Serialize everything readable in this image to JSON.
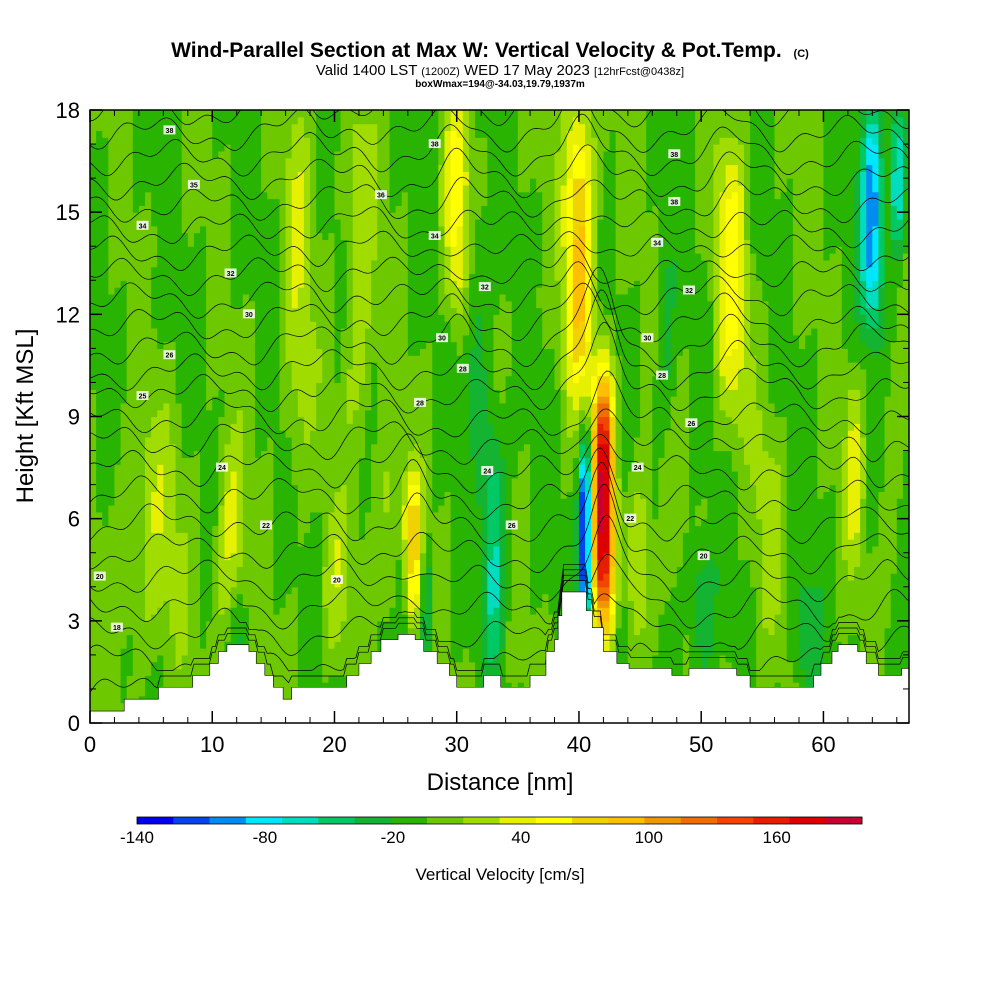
{
  "chart_data": {
    "type": "heatmap",
    "title": "Wind-Parallel Section at Max W: Vertical Velocity & Pot.Temp.",
    "title_mark": "(C)",
    "subtitle_parts": {
      "valid": "Valid 1400 LST",
      "utc": "(1200Z)",
      "date": "WED 17 May 2023",
      "fcst": "[12hrFcst@0438z]"
    },
    "note": "boxWmax=194@-34.03,19.79,1937m",
    "xlabel": "Distance [nm]",
    "ylabel": "Height [Kft MSL]",
    "xlim": [
      0,
      67
    ],
    "ylim": [
      0,
      18
    ],
    "x_ticks": [
      0,
      10,
      20,
      30,
      40,
      50,
      60
    ],
    "y_ticks": [
      0,
      3,
      6,
      9,
      12,
      15,
      18
    ],
    "colorbar": {
      "label": "Vertical Velocity [cm/s]",
      "min": -140,
      "max": 200,
      "tick_values": [
        -140,
        -80,
        -20,
        40,
        100,
        160
      ],
      "tick_labels": [
        "-140",
        "-80",
        "-20",
        "40",
        "100",
        "160"
      ],
      "colors": [
        "#0000ee",
        "#0044f0",
        "#008cf0",
        "#00e6ff",
        "#00dcbe",
        "#00c864",
        "#14b432",
        "#28b400",
        "#6ec800",
        "#a0dc00",
        "#e6f000",
        "#ffff00",
        "#f0d200",
        "#ffbe00",
        "#f09600",
        "#f06e00",
        "#f04600",
        "#e61e00",
        "#dc0000",
        "#c80032"
      ]
    },
    "background_w": -5,
    "updrafts": [
      {
        "x": 5,
        "z_low": 2,
        "z_high": 9,
        "w": 26,
        "sx": 3.0
      },
      {
        "x": 11.5,
        "z_low": 2,
        "z_high": 8,
        "w": 38,
        "sx": 1.2
      },
      {
        "x": 17,
        "z_low": 7,
        "z_high": 18,
        "w": 30,
        "sx": 1.2
      },
      {
        "x": 20,
        "z_low": 2,
        "z_high": 6,
        "w": 26,
        "sx": 1.2
      },
      {
        "x": 22,
        "z_low": 8,
        "z_high": 18,
        "w": 32,
        "sx": 1.3
      },
      {
        "x": 24.5,
        "z_low": 3,
        "z_high": 8,
        "w": 28,
        "sx": 1.2
      },
      {
        "x": 26.5,
        "z_low": 3,
        "z_high": 7,
        "w": 75,
        "sx": 0.8
      },
      {
        "x": 30,
        "z_low": 12,
        "z_high": 18,
        "w": 58,
        "sx": 1.1
      },
      {
        "x": 40,
        "z_low": 10,
        "z_high": 18,
        "w": 92,
        "sx": 1.2
      },
      {
        "x": 42,
        "z_low": 3,
        "z_high": 10,
        "w": 194,
        "sx": 0.9
      },
      {
        "x": 45,
        "z_low": 2,
        "z_high": 7,
        "w": 40,
        "sx": 1.0
      },
      {
        "x": 52.5,
        "z_low": 9,
        "z_high": 17,
        "w": 55,
        "sx": 1.3
      },
      {
        "x": 55.5,
        "z_low": 3,
        "z_high": 9,
        "w": 22,
        "sx": 1.3
      },
      {
        "x": 62.5,
        "z_low": 5,
        "z_high": 10,
        "w": 36,
        "sx": 0.8
      },
      {
        "x": 65.5,
        "z_low": 4,
        "z_high": 10,
        "w": 20,
        "sx": 0.8
      }
    ],
    "downdrafts": [
      {
        "x": 12,
        "z_low": 1,
        "z_high": 4,
        "w": -25,
        "sx": 0.8
      },
      {
        "x": 25.5,
        "z_low": 2.5,
        "z_high": 5,
        "w": -28,
        "sx": 0.6
      },
      {
        "x": 27.5,
        "z_low": 2,
        "z_high": 5,
        "w": -40,
        "sx": 0.6
      },
      {
        "x": 33,
        "z_low": 2,
        "z_high": 9,
        "w": -52,
        "sx": 1.0
      },
      {
        "x": 31.5,
        "z_low": 9,
        "z_high": 15,
        "w": -30,
        "sx": 1.0
      },
      {
        "x": 40.5,
        "z_low": 3,
        "z_high": 8,
        "w": -150,
        "sx": 0.5
      },
      {
        "x": 43.5,
        "z_low": 1.5,
        "z_high": 3.5,
        "w": -30,
        "sx": 0.6
      },
      {
        "x": 50,
        "z_low": 1.5,
        "z_high": 5,
        "w": -35,
        "sx": 1.0
      },
      {
        "x": 47,
        "z_low": 9,
        "z_high": 14,
        "w": -22,
        "sx": 0.8
      },
      {
        "x": 58.5,
        "z_low": 1,
        "z_high": 4,
        "w": -32,
        "sx": 1.0
      },
      {
        "x": 64,
        "z_low": 12,
        "z_high": 18,
        "w": -95,
        "sx": 0.9
      },
      {
        "x": 66,
        "z_low": 14,
        "z_high": 18,
        "w": -70,
        "sx": 0.6
      }
    ],
    "terrain": [
      [
        0,
        0.35
      ],
      [
        2.8,
        0.35
      ],
      [
        2.8,
        0.7
      ],
      [
        5.6,
        0.7
      ],
      [
        5.6,
        1.05
      ],
      [
        8.4,
        1.05
      ],
      [
        8.4,
        1.4
      ],
      [
        9.8,
        1.4
      ],
      [
        9.8,
        1.75
      ],
      [
        10.5,
        1.75
      ],
      [
        10.5,
        2.1
      ],
      [
        11.2,
        2.1
      ],
      [
        11.2,
        2.3
      ],
      [
        13,
        2.3
      ],
      [
        13,
        2.1
      ],
      [
        13.6,
        2.1
      ],
      [
        13.6,
        1.75
      ],
      [
        14.3,
        1.75
      ],
      [
        14.3,
        1.4
      ],
      [
        15,
        1.4
      ],
      [
        15,
        1.05
      ],
      [
        15.8,
        1.05
      ],
      [
        15.8,
        0.7
      ],
      [
        16.5,
        0.7
      ],
      [
        16.5,
        1.05
      ],
      [
        21,
        1.05
      ],
      [
        21,
        1.4
      ],
      [
        22,
        1.4
      ],
      [
        22,
        1.75
      ],
      [
        23,
        1.75
      ],
      [
        23,
        2.1
      ],
      [
        23.8,
        2.1
      ],
      [
        23.8,
        2.45
      ],
      [
        25.2,
        2.45
      ],
      [
        25.2,
        2.6
      ],
      [
        26.6,
        2.6
      ],
      [
        26.6,
        2.45
      ],
      [
        27.3,
        2.45
      ],
      [
        27.3,
        2.1
      ],
      [
        28.4,
        2.1
      ],
      [
        28.4,
        1.75
      ],
      [
        29.4,
        1.75
      ],
      [
        29.4,
        1.4
      ],
      [
        30,
        1.4
      ],
      [
        30,
        1.05
      ],
      [
        32.2,
        1.05
      ],
      [
        32.2,
        1.4
      ],
      [
        33.6,
        1.4
      ],
      [
        33.6,
        1.05
      ],
      [
        36,
        1.05
      ],
      [
        36,
        1.4
      ],
      [
        37.3,
        1.4
      ],
      [
        37.3,
        2.1
      ],
      [
        38,
        2.1
      ],
      [
        38,
        2.45
      ],
      [
        38.3,
        2.45
      ],
      [
        38.3,
        3.15
      ],
      [
        38.6,
        3.15
      ],
      [
        38.6,
        3.85
      ],
      [
        40.6,
        3.85
      ],
      [
        40.6,
        3.3
      ],
      [
        41.1,
        3.3
      ],
      [
        41.1,
        2.8
      ],
      [
        42,
        2.8
      ],
      [
        42,
        2.1
      ],
      [
        43.1,
        2.1
      ],
      [
        43.1,
        1.75
      ],
      [
        44.1,
        1.75
      ],
      [
        44.1,
        1.6
      ],
      [
        47.6,
        1.6
      ],
      [
        47.6,
        1.4
      ],
      [
        49,
        1.4
      ],
      [
        49,
        1.6
      ],
      [
        52.9,
        1.6
      ],
      [
        52.9,
        1.4
      ],
      [
        54,
        1.4
      ],
      [
        54,
        1.05
      ],
      [
        59.2,
        1.05
      ],
      [
        59.2,
        1.4
      ],
      [
        59.8,
        1.4
      ],
      [
        59.8,
        1.75
      ],
      [
        60.7,
        1.75
      ],
      [
        60.7,
        2.1
      ],
      [
        61.2,
        2.1
      ],
      [
        61.2,
        2.3
      ],
      [
        62.8,
        2.3
      ],
      [
        62.8,
        2.1
      ],
      [
        63.5,
        2.1
      ],
      [
        63.5,
        1.75
      ],
      [
        64.5,
        1.75
      ],
      [
        64.5,
        1.4
      ],
      [
        66.4,
        1.4
      ],
      [
        66.4,
        1.6
      ],
      [
        67,
        1.6
      ]
    ],
    "isentrope_base_heights": [
      0.9,
      1.7,
      2.5,
      3.3,
      4.1,
      4.9,
      5.7,
      6.5,
      7.3,
      8.1,
      8.8,
      9.6,
      10.3,
      11.0,
      11.7,
      12.4,
      13.1,
      13.8,
      14.5,
      15.2,
      15.9,
      16.6,
      17.3,
      18.0
    ],
    "theta_labels": [
      {
        "x": 2.2,
        "z": 2.8,
        "text": "18"
      },
      {
        "x": 0.8,
        "z": 4.3,
        "text": "20"
      },
      {
        "x": 20.2,
        "z": 4.2,
        "text": "20"
      },
      {
        "x": 14.4,
        "z": 5.8,
        "text": "22"
      },
      {
        "x": 10.8,
        "z": 7.5,
        "text": "24"
      },
      {
        "x": 32.5,
        "z": 7.4,
        "text": "24"
      },
      {
        "x": 34.5,
        "z": 5.8,
        "text": "26"
      },
      {
        "x": 44.2,
        "z": 6.0,
        "text": "22"
      },
      {
        "x": 50.2,
        "z": 4.9,
        "text": "20"
      },
      {
        "x": 44.8,
        "z": 7.5,
        "text": "24"
      },
      {
        "x": 4.3,
        "z": 9.6,
        "text": "25"
      },
      {
        "x": 27.0,
        "z": 9.4,
        "text": "28"
      },
      {
        "x": 49.2,
        "z": 8.8,
        "text": "26"
      },
      {
        "x": 6.5,
        "z": 10.8,
        "text": "26"
      },
      {
        "x": 30.5,
        "z": 10.4,
        "text": "28"
      },
      {
        "x": 46.8,
        "z": 10.2,
        "text": "28"
      },
      {
        "x": 13.0,
        "z": 12.0,
        "text": "30"
      },
      {
        "x": 28.8,
        "z": 11.3,
        "text": "30"
      },
      {
        "x": 45.6,
        "z": 11.3,
        "text": "30"
      },
      {
        "x": 11.5,
        "z": 13.2,
        "text": "32"
      },
      {
        "x": 32.3,
        "z": 12.8,
        "text": "32"
      },
      {
        "x": 49.0,
        "z": 12.7,
        "text": "32"
      },
      {
        "x": 4.3,
        "z": 14.6,
        "text": "34"
      },
      {
        "x": 28.2,
        "z": 14.3,
        "text": "34"
      },
      {
        "x": 46.4,
        "z": 14.1,
        "text": "34"
      },
      {
        "x": 8.5,
        "z": 15.8,
        "text": "35"
      },
      {
        "x": 23.8,
        "z": 15.5,
        "text": "36"
      },
      {
        "x": 47.8,
        "z": 15.3,
        "text": "38"
      },
      {
        "x": 6.5,
        "z": 17.4,
        "text": "38"
      },
      {
        "x": 28.2,
        "z": 17.0,
        "text": "38"
      },
      {
        "x": 47.8,
        "z": 16.7,
        "text": "38"
      }
    ]
  }
}
